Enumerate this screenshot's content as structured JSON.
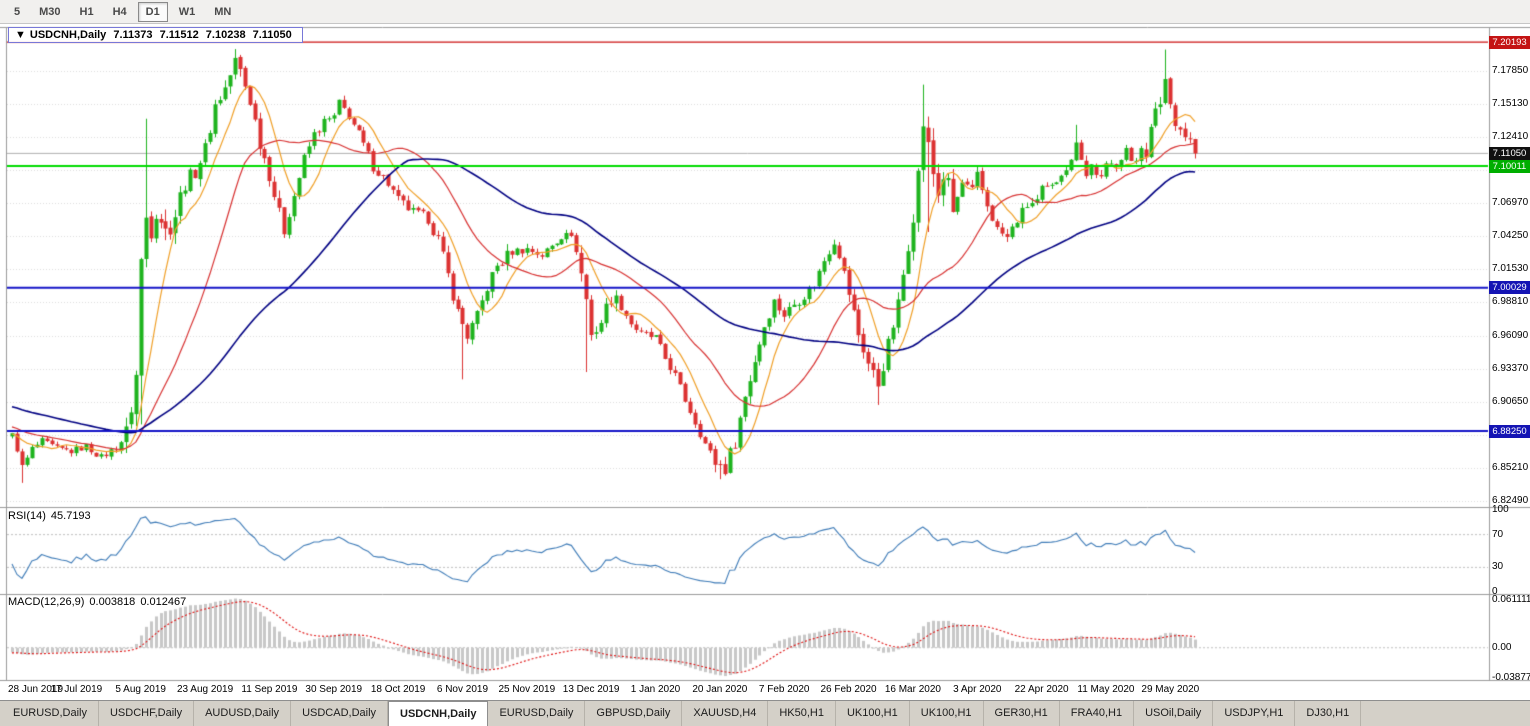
{
  "toolbar": {
    "timeframes": [
      "5",
      "M30",
      "H1",
      "H4",
      "D1",
      "W1",
      "MN"
    ],
    "active": "D1"
  },
  "chart_title": {
    "dropdown_icon": "▼",
    "symbol": "USDCNH,Daily",
    "open": "7.11373",
    "high": "7.11512",
    "low": "7.10238",
    "close": "7.11050"
  },
  "price_axis": {
    "ticks": [
      "7.17850",
      "7.15130",
      "7.12410",
      "7.09690",
      "7.06970",
      "7.04250",
      "7.01530",
      "6.98810",
      "6.96090",
      "6.93370",
      "6.90650",
      "6.87930",
      "6.85210",
      "6.82490"
    ],
    "badges": [
      {
        "label": "7.20193",
        "value": 7.20193,
        "color": "#c41414"
      },
      {
        "label": "7.11050",
        "value": 7.1105,
        "color": "#101010"
      },
      {
        "label": "7.10011",
        "value": 7.10011,
        "color": "#00ae00"
      },
      {
        "label": "7.00029",
        "value": 7.00029,
        "color": "#1414b4"
      },
      {
        "label": "6.88250",
        "value": 6.8825,
        "color": "#1414b4"
      }
    ]
  },
  "hlines": [
    {
      "value": 7.20193,
      "color": "#cc1111",
      "width": 1.2
    },
    {
      "value": 7.10011,
      "color": "#00dc00",
      "width": 2
    },
    {
      "value": 7.00029,
      "color": "#1414c8",
      "width": 2
    },
    {
      "value": 6.8825,
      "color": "#1414c8",
      "width": 2
    }
  ],
  "current_price_line": {
    "value": 7.1105,
    "color": "#b0b0b0",
    "width": 1
  },
  "rsi": {
    "name": "RSI(14)",
    "value": "45.7193",
    "color": "#3f7cb8",
    "levels": [
      70,
      30
    ],
    "scale": [
      {
        "label": "100",
        "v": 100
      },
      {
        "label": "70",
        "v": 70
      },
      {
        "label": "30",
        "v": 30
      },
      {
        "label": "0",
        "v": 0
      }
    ]
  },
  "macd": {
    "name": "MACD(12,26,9)",
    "value1": "0.003818",
    "value2": "0.012467",
    "hist_color": "#c8c8c8",
    "signal_color": "#e01414",
    "scale_top": {
      "label": "0.0611119",
      "v": 0.0611119
    },
    "scale_zero": {
      "label": "0.00",
      "v": 0
    },
    "scale_bottom": {
      "label": "-0.03877",
      "v": -0.03877
    }
  },
  "date_axis": [
    "28 Jun 2019",
    "17 Jul 2019",
    "5 Aug 2019",
    "23 Aug 2019",
    "11 Sep 2019",
    "30 Sep 2019",
    "18 Oct 2019",
    "6 Nov 2019",
    "25 Nov 2019",
    "13 Dec 2019",
    "1 Jan 2020",
    "20 Jan 2020",
    "7 Feb 2020",
    "26 Feb 2020",
    "16 Mar 2020",
    "3 Apr 2020",
    "22 Apr 2020",
    "11 May 2020",
    "29 May 2020"
  ],
  "tabs": [
    {
      "label": "EURUSD,Daily"
    },
    {
      "label": "USDCHF,Daily"
    },
    {
      "label": "AUDUSD,Daily"
    },
    {
      "label": "USDCAD,Daily"
    },
    {
      "label": "USDCNH,Daily",
      "active": true
    },
    {
      "label": "EURUSD,Daily"
    },
    {
      "label": "GBPUSD,Daily"
    },
    {
      "label": "XAUUSD,H4"
    },
    {
      "label": "HK50,H1"
    },
    {
      "label": "UK100,H1"
    },
    {
      "label": "UK100,H1"
    },
    {
      "label": "GER30,H1"
    },
    {
      "label": "FRA40,H1"
    },
    {
      "label": "USOil,Daily"
    },
    {
      "label": "USDJPY,H1"
    },
    {
      "label": "DJ30,H1"
    }
  ],
  "chart_data": {
    "type": "candlestick",
    "symbol": "USDCNH",
    "period": "Daily",
    "num_candles": 240,
    "pre_candles": 60,
    "candles_per_date_tick": 13,
    "price_top": 7.2135,
    "price_bottom": 6.821,
    "base_vol": 0.005,
    "last_close": 7.1105,
    "up_color": "#1eb41e",
    "down_color": "#dc3232",
    "ma": [
      {
        "period": 8,
        "color": "#f0a028"
      },
      {
        "period": 22,
        "color": "#d83232"
      },
      {
        "period": 55,
        "color": "#000082"
      }
    ],
    "anchors": [
      [
        -60,
        6.936
      ],
      [
        -45,
        6.922
      ],
      [
        -30,
        6.905
      ],
      [
        -15,
        6.89
      ],
      [
        -5,
        6.88
      ],
      [
        0,
        6.879
      ],
      [
        1,
        6.868
      ],
      [
        2,
        6.853
      ],
      [
        3,
        6.86
      ],
      [
        4,
        6.868
      ],
      [
        6,
        6.874
      ],
      [
        9,
        6.868
      ],
      [
        12,
        6.866
      ],
      [
        15,
        6.87
      ],
      [
        18,
        6.861
      ],
      [
        21,
        6.869
      ],
      [
        23,
        6.879
      ],
      [
        25,
        6.928
      ],
      [
        26,
        7.022
      ],
      [
        27,
        7.058
      ],
      [
        28,
        7.05
      ],
      [
        29,
        7.066
      ],
      [
        30,
        7.058
      ],
      [
        31,
        7.046
      ],
      [
        33,
        7.061
      ],
      [
        35,
        7.086
      ],
      [
        37,
        7.096
      ],
      [
        39,
        7.114
      ],
      [
        41,
        7.15
      ],
      [
        43,
        7.164
      ],
      [
        45,
        7.186
      ],
      [
        46,
        7.178
      ],
      [
        48,
        7.154
      ],
      [
        50,
        7.12
      ],
      [
        52,
        7.094
      ],
      [
        54,
        7.06
      ],
      [
        55,
        7.048
      ],
      [
        57,
        7.076
      ],
      [
        59,
        7.106
      ],
      [
        61,
        7.126
      ],
      [
        63,
        7.136
      ],
      [
        65,
        7.14
      ],
      [
        66,
        7.151
      ],
      [
        68,
        7.142
      ],
      [
        70,
        7.126
      ],
      [
        73,
        7.1
      ],
      [
        76,
        7.086
      ],
      [
        78,
        7.072
      ],
      [
        81,
        7.062
      ],
      [
        84,
        7.057
      ],
      [
        86,
        7.04
      ],
      [
        88,
        7.01
      ],
      [
        90,
        6.98
      ],
      [
        92,
        6.961
      ],
      [
        94,
        6.976
      ],
      [
        96,
        7.001
      ],
      [
        98,
        7.018
      ],
      [
        101,
        7.03
      ],
      [
        104,
        7.032
      ],
      [
        107,
        7.027
      ],
      [
        110,
        7.038
      ],
      [
        112,
        7.048
      ],
      [
        114,
        7.032
      ],
      [
        116,
        6.991
      ],
      [
        117,
        6.961
      ],
      [
        119,
        6.973
      ],
      [
        121,
        6.993
      ],
      [
        123,
        6.985
      ],
      [
        125,
        6.971
      ],
      [
        127,
        6.962
      ],
      [
        130,
        6.959
      ],
      [
        132,
        6.942
      ],
      [
        134,
        6.928
      ],
      [
        136,
        6.908
      ],
      [
        138,
        6.89
      ],
      [
        140,
        6.872
      ],
      [
        142,
        6.857
      ],
      [
        144,
        6.852
      ],
      [
        146,
        6.875
      ],
      [
        148,
        6.911
      ],
      [
        150,
        6.941
      ],
      [
        152,
        6.969
      ],
      [
        154,
        6.989
      ],
      [
        156,
        6.978
      ],
      [
        158,
        6.987
      ],
      [
        160,
        6.994
      ],
      [
        162,
        7.003
      ],
      [
        164,
        7.023
      ],
      [
        166,
        7.039
      ],
      [
        167,
        7.028
      ],
      [
        169,
        6.996
      ],
      [
        171,
        6.962
      ],
      [
        173,
        6.938
      ],
      [
        175,
        6.921
      ],
      [
        177,
        6.953
      ],
      [
        179,
        6.986
      ],
      [
        181,
        7.036
      ],
      [
        183,
        7.092
      ],
      [
        184,
        7.136
      ],
      [
        185,
        7.114
      ],
      [
        186,
        7.094
      ],
      [
        187,
        7.078
      ],
      [
        188,
        7.093
      ],
      [
        189,
        7.082
      ],
      [
        190,
        7.062
      ],
      [
        192,
        7.086
      ],
      [
        194,
        7.079
      ],
      [
        195,
        7.092
      ],
      [
        197,
        7.068
      ],
      [
        199,
        7.048
      ],
      [
        201,
        7.041
      ],
      [
        203,
        7.056
      ],
      [
        205,
        7.068
      ],
      [
        207,
        7.071
      ],
      [
        208,
        7.08
      ],
      [
        210,
        7.082
      ],
      [
        212,
        7.096
      ],
      [
        214,
        7.103
      ],
      [
        215,
        7.123
      ],
      [
        216,
        7.108
      ],
      [
        217,
        7.092
      ],
      [
        218,
        7.101
      ],
      [
        220,
        7.089
      ],
      [
        221,
        7.099
      ],
      [
        223,
        7.103
      ],
      [
        225,
        7.115
      ],
      [
        226,
        7.101
      ],
      [
        227,
        7.105
      ],
      [
        228,
        7.118
      ],
      [
        229,
        7.112
      ],
      [
        230,
        7.129
      ],
      [
        231,
        7.143
      ],
      [
        232,
        7.153
      ],
      [
        233,
        7.172
      ],
      [
        234,
        7.151
      ],
      [
        235,
        7.139
      ],
      [
        236,
        7.131
      ],
      [
        237,
        7.126
      ],
      [
        238,
        7.121
      ],
      [
        239,
        7.1105
      ]
    ],
    "vol_zones": [
      [
        -60,
        22,
        0.0035
      ],
      [
        23,
        34,
        0.013
      ],
      [
        35,
        55,
        0.008
      ],
      [
        56,
        84,
        0.0055
      ],
      [
        85,
        100,
        0.007
      ],
      [
        101,
        114,
        0.0045
      ],
      [
        115,
        122,
        0.009
      ],
      [
        123,
        141,
        0.0045
      ],
      [
        142,
        150,
        0.008
      ],
      [
        151,
        168,
        0.0055
      ],
      [
        169,
        181,
        0.008
      ],
      [
        182,
        190,
        0.013
      ],
      [
        191,
        228,
        0.0055
      ],
      [
        229,
        239,
        0.008
      ]
    ],
    "spikes": [
      {
        "i": 2,
        "low": 6.84
      },
      {
        "i": 26,
        "low": 6.888
      },
      {
        "i": 27,
        "high": 7.139
      },
      {
        "i": 45,
        "high": 7.1962
      },
      {
        "i": 91,
        "low": 6.925
      },
      {
        "i": 116,
        "low": 6.931
      },
      {
        "i": 143,
        "low": 6.843
      },
      {
        "i": 144,
        "low": 6.846
      },
      {
        "i": 175,
        "low": 6.904
      },
      {
        "i": 184,
        "high": 7.167
      },
      {
        "i": 185,
        "low": 7.046
      },
      {
        "i": 215,
        "high": 7.134
      },
      {
        "i": 233,
        "high": 7.1958
      }
    ]
  }
}
